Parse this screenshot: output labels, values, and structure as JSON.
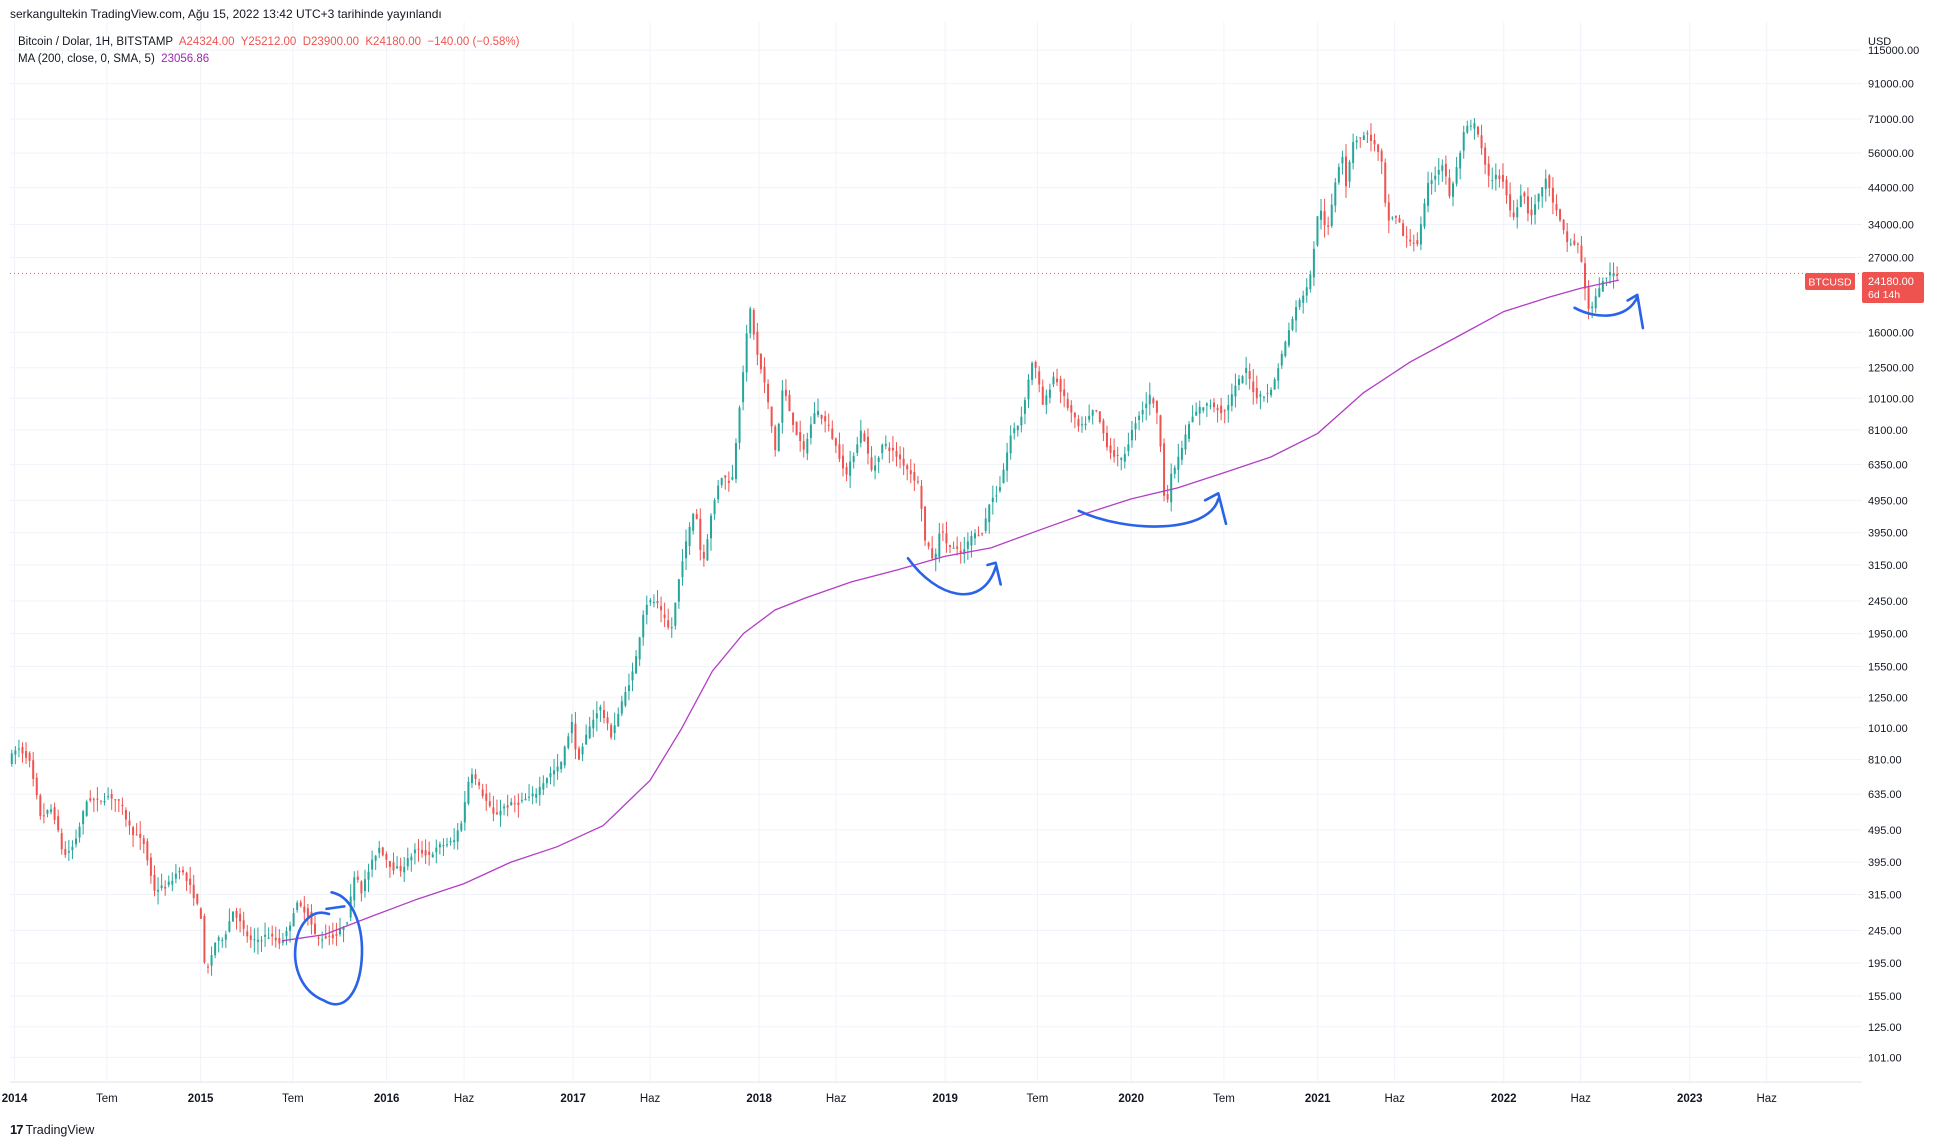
{
  "header": {
    "credit": "serkangultekin TradingView.com, Ağu 15, 2022 13:42 UTC+3 tarihinde yayınlandı"
  },
  "legend": {
    "symbol": "Bitcoin / Dolar, 1H, BITSTAMP",
    "open": "A24324.00",
    "high": "Y25212.00",
    "low": "D23900.00",
    "close": "K24180.00",
    "change": "−140.00 (−0.58%)",
    "ma_label": "MA (200, close, 0, SMA, 5)",
    "ma_value": "23056.86"
  },
  "footer": {
    "logo_mark": "17",
    "logo_text": "TradingView"
  },
  "colors": {
    "up": "#26a69a",
    "down": "#ef5350",
    "ma": "#b33dc6",
    "annotation": "#2a62e8",
    "grid": "#f0f3fa",
    "price_tag": "#ef5350"
  },
  "chart_data": {
    "type": "candlestick",
    "title": "Bitcoin / Dolar, 1H, BITSTAMP",
    "y_axis": {
      "unit_label": "USD",
      "scale": "log",
      "range": [
        85,
        140000
      ],
      "ticks": [
        115000,
        91000,
        71000,
        56000,
        44000,
        34000,
        27000,
        16000,
        12500,
        10100,
        8100,
        6350,
        4950,
        3950,
        3150,
        2450,
        1950,
        1550,
        1250,
        1010,
        810,
        635,
        495,
        395,
        315,
        245,
        195,
        155,
        125,
        101
      ],
      "tick_labels": [
        "115000.00",
        "91000.00",
        "71000.00",
        "56000.00",
        "44000.00",
        "34000.00",
        "27000.00",
        "16000.00",
        "12500.00",
        "10100.00",
        "8100.00",
        "6350.00",
        "4950.00",
        "3950.00",
        "3150.00",
        "2450.00",
        "1950.00",
        "1550.00",
        "1250.00",
        "1010.00",
        "810.00",
        "635.00",
        "495.00",
        "395.00",
        "315.00",
        "245.00",
        "195.00",
        "155.00",
        "125.00",
        "101.00"
      ]
    },
    "x_axis": {
      "range": [
        "2013-12-23",
        "2023-12-05"
      ],
      "ticks": [
        {
          "date": "2014-01-01",
          "label": "2014",
          "major": true
        },
        {
          "date": "2014-07-01",
          "label": "Tem",
          "major": false
        },
        {
          "date": "2015-01-01",
          "label": "2015",
          "major": true
        },
        {
          "date": "2015-07-01",
          "label": "Tem",
          "major": false
        },
        {
          "date": "2016-01-01",
          "label": "2016",
          "major": true
        },
        {
          "date": "2016-06-01",
          "label": "Haz",
          "major": false
        },
        {
          "date": "2017-01-01",
          "label": "2017",
          "major": true
        },
        {
          "date": "2017-06-01",
          "label": "Haz",
          "major": false
        },
        {
          "date": "2018-01-01",
          "label": "2018",
          "major": true
        },
        {
          "date": "2018-06-01",
          "label": "Haz",
          "major": false
        },
        {
          "date": "2019-01-01",
          "label": "2019",
          "major": true
        },
        {
          "date": "2019-07-01",
          "label": "Tem",
          "major": false
        },
        {
          "date": "2020-01-01",
          "label": "2020",
          "major": true
        },
        {
          "date": "2020-07-01",
          "label": "Tem",
          "major": false
        },
        {
          "date": "2021-01-01",
          "label": "2021",
          "major": true
        },
        {
          "date": "2021-06-01",
          "label": "Haz",
          "major": false
        },
        {
          "date": "2022-01-01",
          "label": "2022",
          "major": true
        },
        {
          "date": "2022-06-01",
          "label": "Haz",
          "major": false
        },
        {
          "date": "2023-01-01",
          "label": "2023",
          "major": true
        },
        {
          "date": "2023-06-01",
          "label": "Haz",
          "major": false
        }
      ]
    },
    "price_points": [
      [
        "2013-12-23",
        800
      ],
      [
        "2014-01-10",
        880
      ],
      [
        "2014-02-01",
        820
      ],
      [
        "2014-02-25",
        540
      ],
      [
        "2014-03-20",
        575
      ],
      [
        "2014-04-11",
        410
      ],
      [
        "2014-05-01",
        445
      ],
      [
        "2014-05-28",
        620
      ],
      [
        "2014-06-15",
        600
      ],
      [
        "2014-07-10",
        630
      ],
      [
        "2014-08-01",
        590
      ],
      [
        "2014-08-20",
        495
      ],
      [
        "2014-09-15",
        450
      ],
      [
        "2014-10-05",
        325
      ],
      [
        "2014-11-01",
        335
      ],
      [
        "2014-11-25",
        380
      ],
      [
        "2014-12-20",
        320
      ],
      [
        "2015-01-05",
        270
      ],
      [
        "2015-01-14",
        175
      ],
      [
        "2015-02-01",
        225
      ],
      [
        "2015-02-20",
        235
      ],
      [
        "2015-03-10",
        285
      ],
      [
        "2015-03-30",
        245
      ],
      [
        "2015-04-15",
        225
      ],
      [
        "2015-05-15",
        237
      ],
      [
        "2015-06-10",
        225
      ],
      [
        "2015-06-25",
        245
      ],
      [
        "2015-07-10",
        295
      ],
      [
        "2015-08-01",
        280
      ],
      [
        "2015-08-20",
        230
      ],
      [
        "2015-09-10",
        235
      ],
      [
        "2015-09-30",
        237
      ],
      [
        "2015-10-20",
        265
      ],
      [
        "2015-11-04",
        380
      ],
      [
        "2015-11-15",
        320
      ],
      [
        "2015-12-01",
        375
      ],
      [
        "2015-12-20",
        440
      ],
      [
        "2016-01-15",
        380
      ],
      [
        "2016-02-01",
        375
      ],
      [
        "2016-03-01",
        430
      ],
      [
        "2016-03-30",
        415
      ],
      [
        "2016-04-20",
        445
      ],
      [
        "2016-05-15",
        455
      ],
      [
        "2016-06-01",
        535
      ],
      [
        "2016-06-17",
        760
      ],
      [
        "2016-07-01",
        680
      ],
      [
        "2016-08-02",
        545
      ],
      [
        "2016-08-20",
        580
      ],
      [
        "2016-09-20",
        600
      ],
      [
        "2016-10-20",
        630
      ],
      [
        "2016-11-15",
        720
      ],
      [
        "2016-12-10",
        770
      ],
      [
        "2017-01-04",
        1090
      ],
      [
        "2017-01-11",
        780
      ],
      [
        "2017-02-01",
        975
      ],
      [
        "2017-02-25",
        1180
      ],
      [
        "2017-03-20",
        960
      ],
      [
        "2017-04-10",
        1200
      ],
      [
        "2017-05-05",
        1550
      ],
      [
        "2017-05-25",
        2400
      ],
      [
        "2017-06-15",
        2450
      ],
      [
        "2017-07-15",
        1950
      ],
      [
        "2017-08-05",
        3200
      ],
      [
        "2017-09-01",
        4800
      ],
      [
        "2017-09-15",
        3100
      ],
      [
        "2017-10-01",
        4350
      ],
      [
        "2017-10-20",
        5900
      ],
      [
        "2017-11-12",
        5600
      ],
      [
        "2017-11-28",
        10000
      ],
      [
        "2017-12-17",
        19200
      ],
      [
        "2017-12-31",
        13800
      ],
      [
        "2018-01-17",
        10900
      ],
      [
        "2018-02-06",
        6900
      ],
      [
        "2018-02-20",
        11000
      ],
      [
        "2018-03-10",
        8700
      ],
      [
        "2018-04-01",
        6900
      ],
      [
        "2018-04-25",
        9400
      ],
      [
        "2018-05-20",
        8300
      ],
      [
        "2018-06-25",
        5900
      ],
      [
        "2018-07-25",
        8200
      ],
      [
        "2018-08-14",
        6000
      ],
      [
        "2018-09-05",
        7400
      ],
      [
        "2018-10-10",
        6550
      ],
      [
        "2018-11-15",
        5500
      ],
      [
        "2018-11-25",
        3750
      ],
      [
        "2018-12-15",
        3200
      ],
      [
        "2018-12-25",
        4100
      ],
      [
        "2019-01-10",
        3600
      ],
      [
        "2019-02-07",
        3400
      ],
      [
        "2019-02-25",
        3850
      ],
      [
        "2019-03-20",
        4000
      ],
      [
        "2019-04-02",
        4900
      ],
      [
        "2019-04-20",
        5300
      ],
      [
        "2019-05-14",
        7900
      ],
      [
        "2019-06-01",
        8600
      ],
      [
        "2019-06-26",
        13500
      ],
      [
        "2019-07-16",
        9500
      ],
      [
        "2019-08-06",
        11900
      ],
      [
        "2019-09-01",
        9600
      ],
      [
        "2019-09-26",
        8100
      ],
      [
        "2019-10-26",
        9400
      ],
      [
        "2019-11-22",
        7000
      ],
      [
        "2019-12-17",
        6500
      ],
      [
        "2020-01-14",
        8700
      ],
      [
        "2020-02-13",
        10400
      ],
      [
        "2020-02-28",
        8500
      ],
      [
        "2020-03-12",
        4500
      ],
      [
        "2020-03-22",
        5800
      ],
      [
        "2020-04-10",
        6900
      ],
      [
        "2020-04-30",
        8700
      ],
      [
        "2020-05-20",
        9500
      ],
      [
        "2020-06-10",
        9700
      ],
      [
        "2020-07-05",
        9100
      ],
      [
        "2020-07-28",
        11000
      ],
      [
        "2020-08-17",
        12300
      ],
      [
        "2020-09-05",
        10200
      ],
      [
        "2020-10-05",
        10600
      ],
      [
        "2020-10-21",
        12900
      ],
      [
        "2020-11-20",
        18500
      ],
      [
        "2020-12-20",
        23000
      ],
      [
        "2021-01-08",
        40000
      ],
      [
        "2021-01-22",
        31000
      ],
      [
        "2021-02-08",
        46000
      ],
      [
        "2021-02-21",
        57000
      ],
      [
        "2021-03-01",
        45000
      ],
      [
        "2021-03-14",
        61000
      ],
      [
        "2021-04-14",
        64000
      ],
      [
        "2021-05-01",
        57000
      ],
      [
        "2021-05-12",
        51000
      ],
      [
        "2021-05-19",
        35000
      ],
      [
        "2021-06-10",
        36000
      ],
      [
        "2021-06-22",
        31000
      ],
      [
        "2021-07-20",
        29800
      ],
      [
        "2021-08-10",
        45500
      ],
      [
        "2021-09-07",
        52000
      ],
      [
        "2021-09-21",
        41000
      ],
      [
        "2021-10-05",
        51000
      ],
      [
        "2021-10-20",
        66000
      ],
      [
        "2021-11-10",
        68500
      ],
      [
        "2021-11-26",
        54000
      ],
      [
        "2021-12-04",
        47000
      ],
      [
        "2022-01-01",
        47500
      ],
      [
        "2022-01-22",
        35000
      ],
      [
        "2022-02-10",
        44000
      ],
      [
        "2022-02-24",
        35500
      ],
      [
        "2022-03-28",
        47000
      ],
      [
        "2022-04-12",
        39500
      ],
      [
        "2022-05-09",
        30000
      ],
      [
        "2022-06-01",
        29500
      ],
      [
        "2022-06-13",
        22000
      ],
      [
        "2022-06-18",
        18500
      ],
      [
        "2022-06-30",
        19500
      ],
      [
        "2022-07-20",
        23500
      ],
      [
        "2022-07-29",
        23900
      ],
      [
        "2022-08-15",
        24180
      ]
    ],
    "moving_average": {
      "label": "MA (200, close, 0, SMA, 5)",
      "value": 23056.86,
      "points": [
        [
          "2015-06-10",
          228
        ],
        [
          "2015-09-01",
          238
        ],
        [
          "2015-12-01",
          270
        ],
        [
          "2016-03-01",
          305
        ],
        [
          "2016-06-01",
          340
        ],
        [
          "2016-09-01",
          395
        ],
        [
          "2016-12-01",
          440
        ],
        [
          "2017-03-01",
          510
        ],
        [
          "2017-06-01",
          700
        ],
        [
          "2017-08-01",
          1000
        ],
        [
          "2017-10-01",
          1500
        ],
        [
          "2017-12-01",
          1950
        ],
        [
          "2018-02-01",
          2300
        ],
        [
          "2018-04-01",
          2500
        ],
        [
          "2018-07-01",
          2800
        ],
        [
          "2018-10-01",
          3050
        ],
        [
          "2019-01-01",
          3350
        ],
        [
          "2019-04-01",
          3550
        ],
        [
          "2019-07-01",
          4000
        ],
        [
          "2019-10-01",
          4500
        ],
        [
          "2020-01-01",
          5000
        ],
        [
          "2020-04-01",
          5400
        ],
        [
          "2020-07-01",
          6000
        ],
        [
          "2020-10-01",
          6700
        ],
        [
          "2021-01-01",
          7900
        ],
        [
          "2021-04-01",
          10500
        ],
        [
          "2021-07-01",
          13000
        ],
        [
          "2021-10-01",
          15500
        ],
        [
          "2022-01-01",
          18500
        ],
        [
          "2022-04-01",
          20500
        ],
        [
          "2022-06-01",
          21800
        ],
        [
          "2022-08-15",
          23056.86
        ]
      ]
    },
    "current_price": {
      "symbol": "BTCUSD",
      "price": "24180.00",
      "countdown": "6d 14h"
    }
  }
}
